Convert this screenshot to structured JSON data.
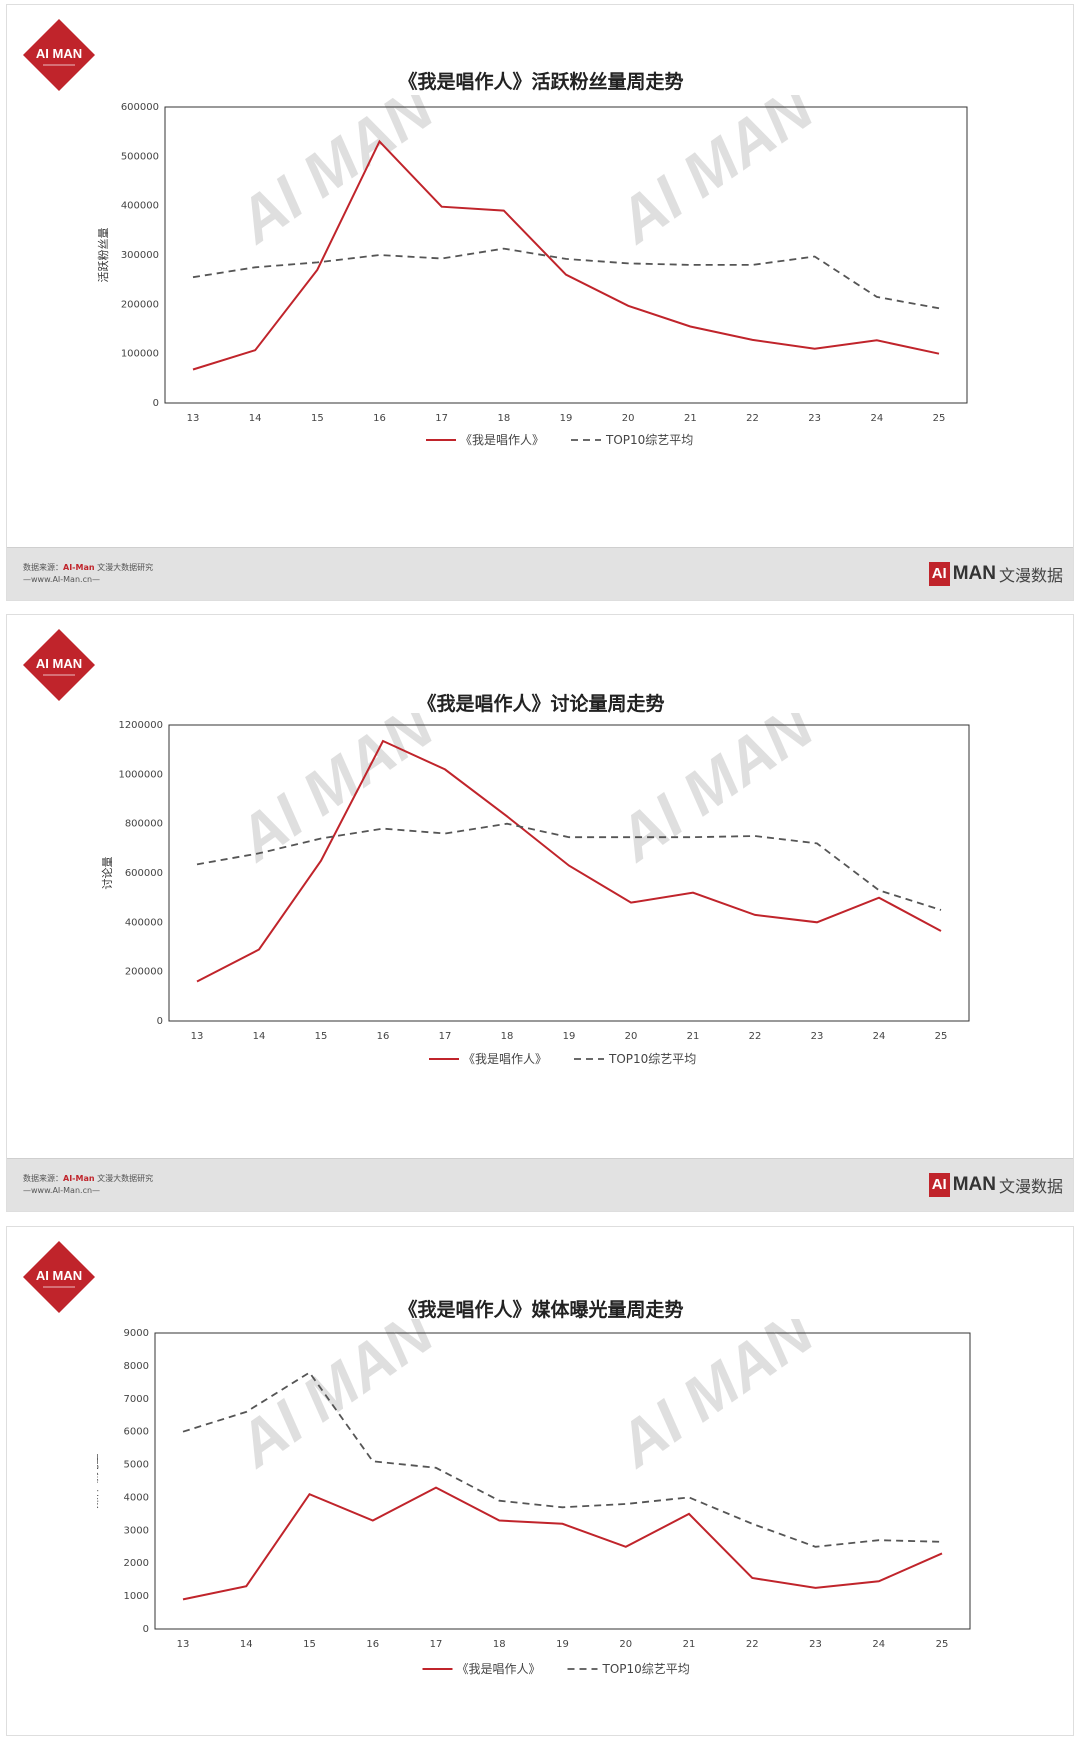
{
  "logo": {
    "text": "AI MAN",
    "color": "#c0242b"
  },
  "footer": {
    "source_label": "数据来源：",
    "source_brand": "AI-Man",
    "source_rest": " 文漫大数据研究",
    "url": "—www.AI-Man.cn—",
    "brand_mark": "AI",
    "brand_man": "MAN",
    "brand_cn": "文漫数据"
  },
  "legend": {
    "series_main": "《我是唱作人》",
    "series_avg": "TOP10综艺平均"
  },
  "colors": {
    "main": "#c0242b",
    "avg": "#555555"
  },
  "panels": [
    {
      "title": "《我是唱作人》活跃粉丝量周走势",
      "chart_data": {
        "type": "line",
        "title": "《我是唱作人》活跃粉丝量周走势",
        "ylabel": "活跃粉丝量",
        "xlabel": "",
        "x": [
          "13",
          "14",
          "15",
          "16",
          "17",
          "18",
          "19",
          "20",
          "21",
          "22",
          "23",
          "24",
          "25"
        ],
        "ylim": [
          0,
          600000
        ],
        "yticks": [
          0,
          100000,
          200000,
          300000,
          400000,
          500000,
          600000
        ],
        "series": [
          {
            "name": "《我是唱作人》",
            "style": "solid",
            "values": [
              68000,
              107000,
              270000,
              530000,
              398000,
              390000,
              260000,
              197000,
              155000,
              128000,
              110000,
              127000,
              100000
            ]
          },
          {
            "name": "TOP10综艺平均",
            "style": "dashed",
            "values": [
              255000,
              275000,
              285000,
              300000,
              293000,
              313000,
              292000,
              283000,
              280000,
              280000,
              297000,
              215000,
              192000
            ]
          }
        ]
      }
    },
    {
      "title": "《我是唱作人》讨论量周走势",
      "chart_data": {
        "type": "line",
        "title": "《我是唱作人》讨论量周走势",
        "ylabel": "讨论量",
        "xlabel": "",
        "x": [
          "13",
          "14",
          "15",
          "16",
          "17",
          "18",
          "19",
          "20",
          "21",
          "22",
          "23",
          "24",
          "25"
        ],
        "ylim": [
          0,
          1200000
        ],
        "yticks": [
          0,
          200000,
          400000,
          600000,
          800000,
          1000000,
          1200000
        ],
        "series": [
          {
            "name": "《我是唱作人》",
            "style": "solid",
            "values": [
              160000,
              290000,
              650000,
              1135000,
              1020000,
              830000,
              630000,
              480000,
              520000,
              430000,
              400000,
              500000,
              365000
            ]
          },
          {
            "name": "TOP10综艺平均",
            "style": "dashed",
            "values": [
              635000,
              680000,
              740000,
              780000,
              760000,
              800000,
              745000,
              745000,
              745000,
              750000,
              720000,
              530000,
              450000
            ]
          }
        ]
      }
    },
    {
      "title": "《我是唱作人》媒体曝光量周走势",
      "chart_data": {
        "type": "line",
        "title": "《我是唱作人》媒体曝光量周走势",
        "ylabel": "媒体曝光量",
        "xlabel": "",
        "x": [
          "13",
          "14",
          "15",
          "16",
          "17",
          "18",
          "19",
          "20",
          "21",
          "22",
          "23",
          "24",
          "25"
        ],
        "ylim": [
          0,
          9000
        ],
        "yticks": [
          0,
          1000,
          2000,
          3000,
          4000,
          5000,
          6000,
          7000,
          8000,
          9000
        ],
        "series": [
          {
            "name": "《我是唱作人》",
            "style": "solid",
            "values": [
              900,
              1300,
              4100,
              3300,
              4300,
              3300,
              3200,
              2500,
              3500,
              1550,
              1250,
              1450,
              2300
            ]
          },
          {
            "name": "TOP10综艺平均",
            "style": "dashed",
            "values": [
              6000,
              6600,
              7800,
              5100,
              4900,
              3900,
              3700,
              3800,
              4000,
              3200,
              2500,
              2700,
              2650
            ]
          }
        ]
      }
    }
  ]
}
